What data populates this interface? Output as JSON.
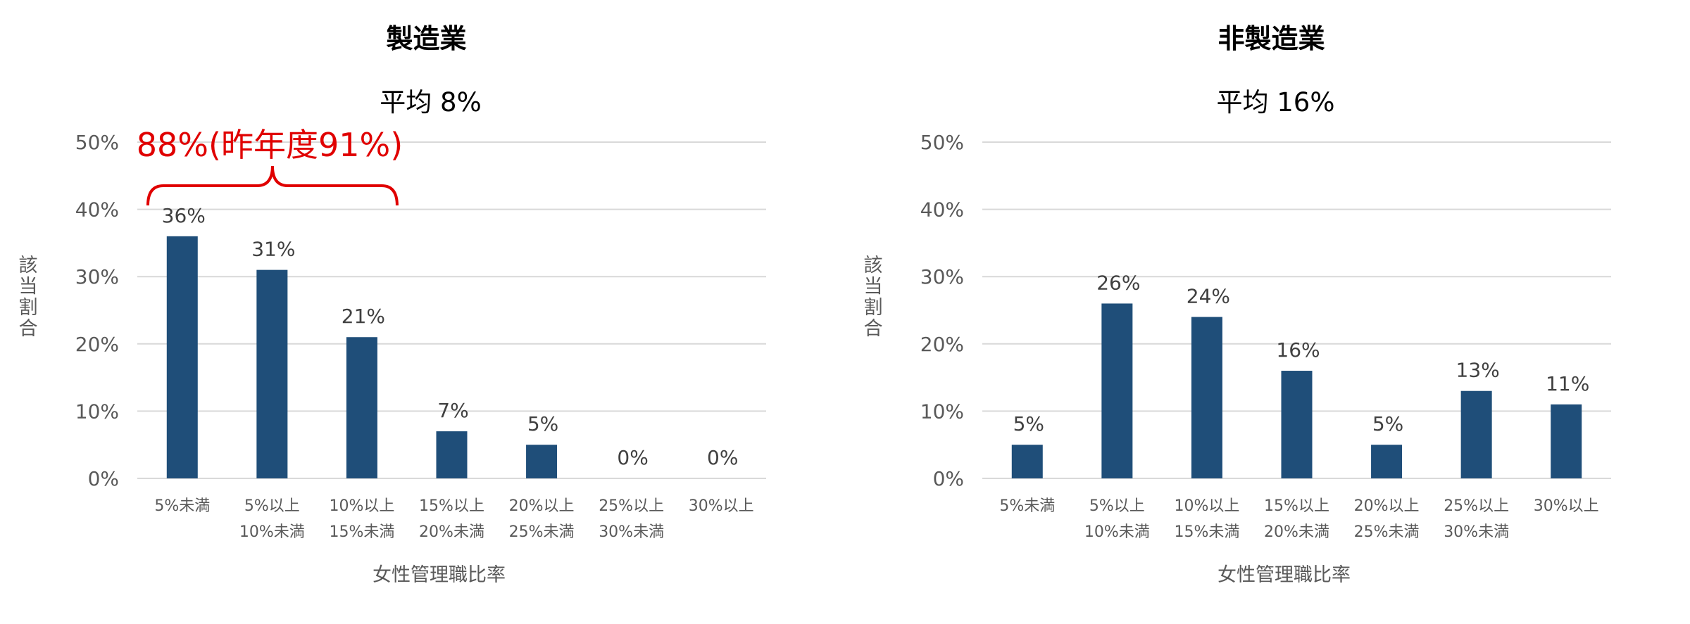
{
  "chart_data": [
    {
      "type": "bar",
      "title": "製造業",
      "subtitle": "平均 8%",
      "ylabel": "該当割合",
      "xlabel": "女性管理職比率",
      "ylim": [
        0,
        50
      ],
      "yticks": [
        "0%",
        "10%",
        "20%",
        "30%",
        "40%",
        "50%"
      ],
      "grid": true,
      "categories": [
        [
          "5%未満"
        ],
        [
          "5%以上",
          "10%未満"
        ],
        [
          "10%以上",
          "15%未満"
        ],
        [
          "15%以上",
          "20%未満"
        ],
        [
          "20%以上",
          "25%未満"
        ],
        [
          "25%以上",
          "30%未満"
        ],
        [
          "30%以上"
        ]
      ],
      "values": [
        36,
        31,
        21,
        7,
        5,
        0,
        0
      ],
      "data_labels": [
        "36%",
        "31%",
        "21%",
        "7%",
        "5%",
        "0%",
        "0%"
      ],
      "annotation": {
        "text": "88%(昨年度91%)",
        "spans_categories": [
          0,
          2
        ],
        "color": "#e00000"
      }
    },
    {
      "type": "bar",
      "title": "非製造業",
      "subtitle": "平均 16%",
      "ylabel": "該当割合",
      "xlabel": "女性管理職比率",
      "ylim": [
        0,
        50
      ],
      "yticks": [
        "0%",
        "10%",
        "20%",
        "30%",
        "40%",
        "50%"
      ],
      "grid": true,
      "categories": [
        [
          "5%未満"
        ],
        [
          "5%以上",
          "10%未満"
        ],
        [
          "10%以上",
          "15%未満"
        ],
        [
          "15%以上",
          "20%未満"
        ],
        [
          "20%以上",
          "25%未満"
        ],
        [
          "25%以上",
          "30%未満"
        ],
        [
          "30%以上"
        ]
      ],
      "values": [
        5,
        26,
        24,
        16,
        5,
        13,
        11
      ],
      "data_labels": [
        "5%",
        "26%",
        "24%",
        "16%",
        "5%",
        "13%",
        "11%"
      ]
    }
  ]
}
